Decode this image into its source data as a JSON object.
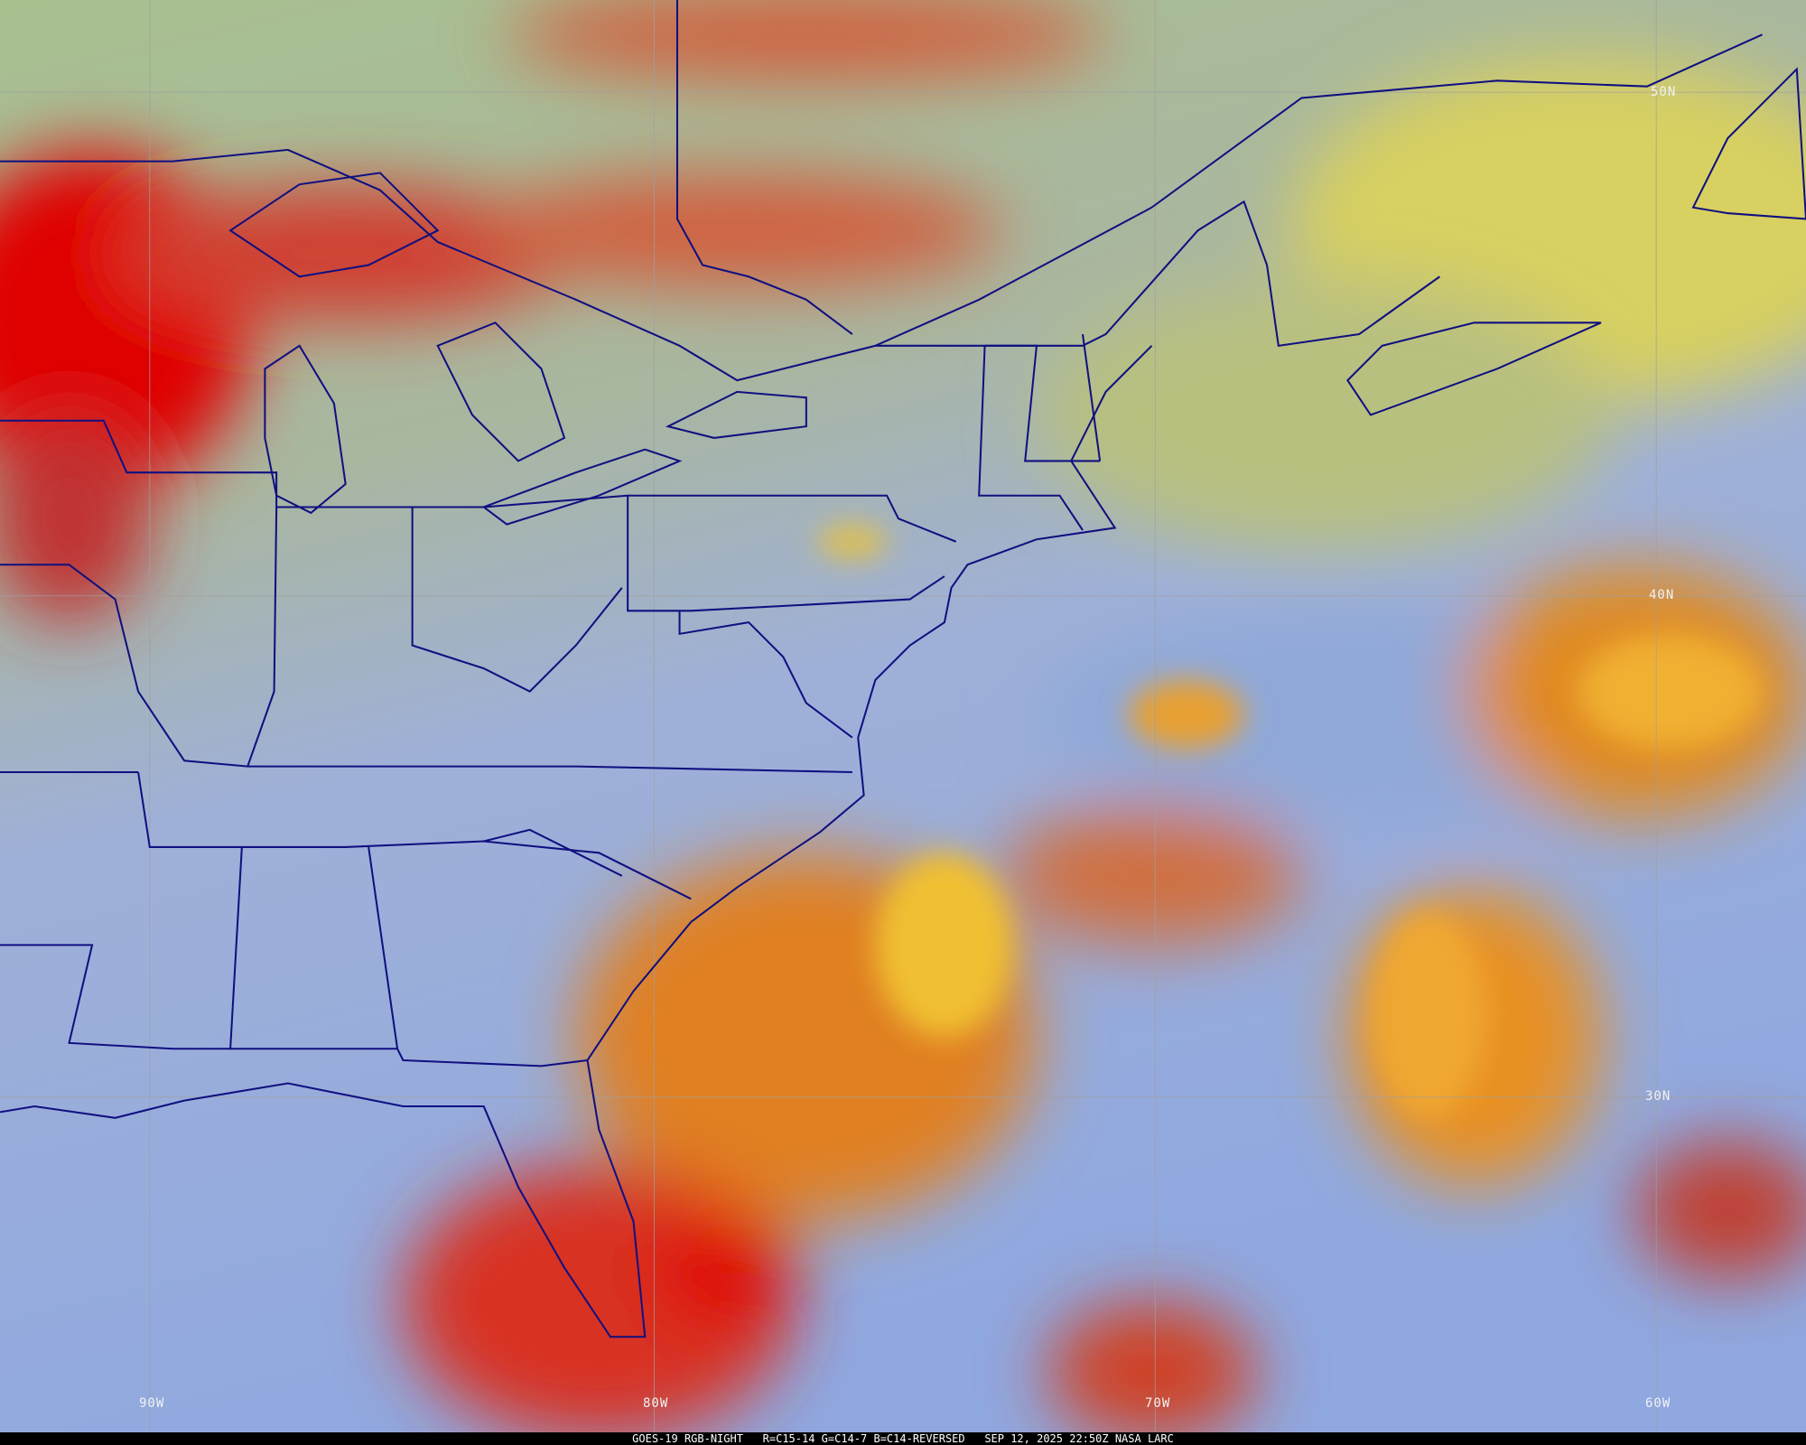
{
  "caption": {
    "satellite": "GOES-19 RGB-NIGHT",
    "channels": "R=C15-14 G=C14-7 B=C14-REVERSED",
    "timestamp": "SEP 12, 2025 22:50Z",
    "credit": "NASA LARC"
  },
  "latitude_labels": [
    "50N",
    "40N",
    "30N"
  ],
  "longitude_labels": [
    "90W",
    "80W",
    "70W",
    "60W"
  ],
  "colors": {
    "clear_land_ocean": "#8fa8e0",
    "high_cloud": "#e00000",
    "mid_cloud": "#f0a020",
    "low_cloud": "#c8c860",
    "boundaries": "#101080",
    "grid": "#a0a0a0"
  }
}
